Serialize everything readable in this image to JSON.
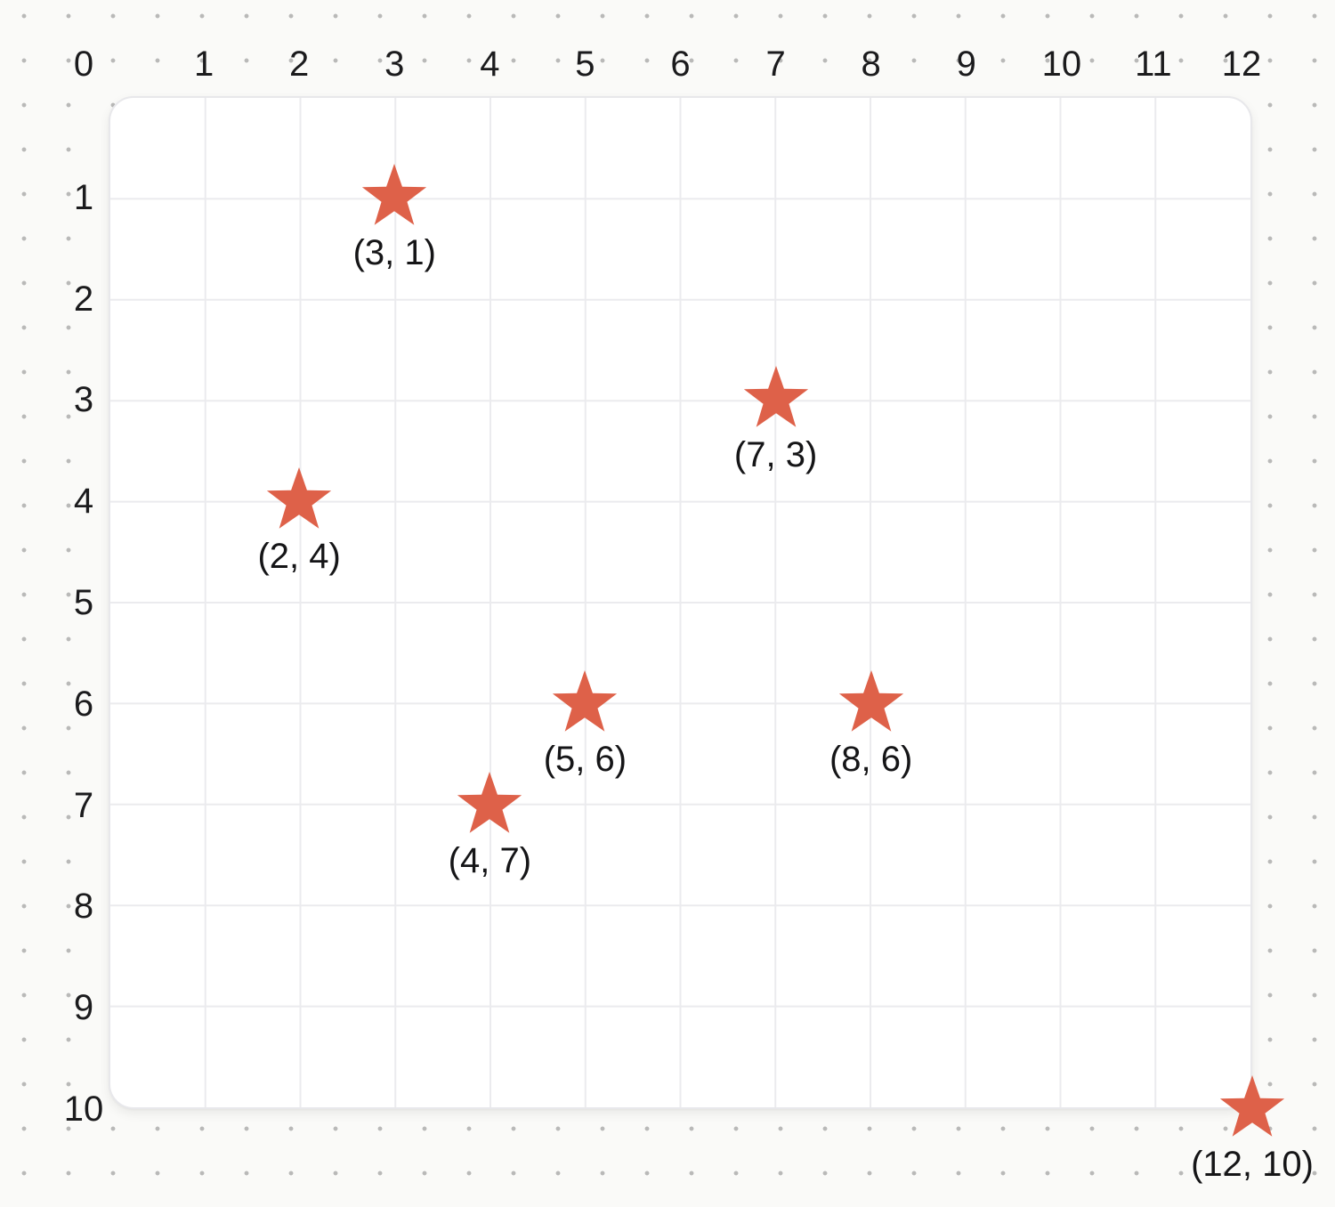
{
  "chart_data": {
    "type": "scatter",
    "title": "",
    "x_axis": {
      "position": "top",
      "ticks": [
        0,
        1,
        2,
        3,
        4,
        5,
        6,
        7,
        8,
        9,
        10,
        11,
        12
      ],
      "range": [
        0,
        12
      ]
    },
    "y_axis": {
      "position": "left",
      "ticks": [
        1,
        2,
        3,
        4,
        5,
        6,
        7,
        8,
        9,
        10
      ],
      "range": [
        0,
        10
      ],
      "direction": "down"
    },
    "grid": true,
    "marker": {
      "shape": "star",
      "color": "#DE6149"
    },
    "points": [
      {
        "x": 3,
        "y": 1,
        "label": "(3, 1)"
      },
      {
        "x": 7,
        "y": 3,
        "label": "(7, 3)"
      },
      {
        "x": 2,
        "y": 4,
        "label": "(2, 4)"
      },
      {
        "x": 5,
        "y": 6,
        "label": "(5, 6)"
      },
      {
        "x": 8,
        "y": 6,
        "label": "(8, 6)"
      },
      {
        "x": 4,
        "y": 7,
        "label": "(4, 7)"
      },
      {
        "x": 12,
        "y": 10,
        "label": "(12, 10)"
      }
    ]
  },
  "colors": {
    "background": "#FAFAF8",
    "dot_pattern": "#B9B9B8",
    "grid_background": "#FFFFFF",
    "grid_line": "#EBEBEE",
    "label_text": "#1B1B1D",
    "marker": "#DE6149"
  }
}
